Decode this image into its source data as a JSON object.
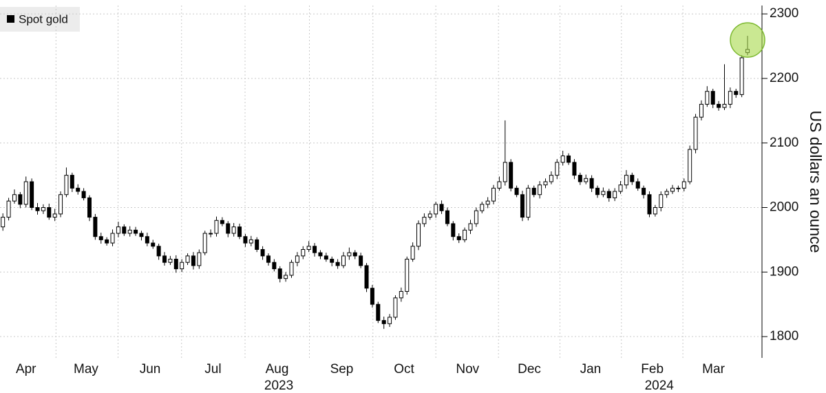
{
  "chart_data": {
    "type": "candlestick",
    "legend": "Spot gold",
    "legend_color": "#000000",
    "ylabel": "US dollars an ounce",
    "ylim": [
      1767,
      2313
    ],
    "yticks": [
      1800,
      1900,
      2000,
      2100,
      2200,
      2300
    ],
    "xlim": [
      -0.5,
      131.5
    ],
    "xticks": [
      {
        "value": 4.0,
        "label": "Apr"
      },
      {
        "value": 14.4,
        "label": "May"
      },
      {
        "value": 25.5,
        "label": "Jun"
      },
      {
        "value": 36.4,
        "label": "Jul"
      },
      {
        "value": 47.5,
        "label": "Aug"
      },
      {
        "value": 58.7,
        "label": "Sep"
      },
      {
        "value": 69.5,
        "label": "Oct"
      },
      {
        "value": 80.5,
        "label": "Nov"
      },
      {
        "value": 91.2,
        "label": "Dec"
      },
      {
        "value": 101.8,
        "label": "Jan"
      },
      {
        "value": 112.5,
        "label": "Feb"
      },
      {
        "value": 123.1,
        "label": "Mar"
      }
    ],
    "year_ticks": [
      {
        "value": 47.8,
        "label": "2023"
      },
      {
        "value": 113.7,
        "label": "2024"
      }
    ],
    "grid": true,
    "up_color": "#ffffff",
    "down_color": "#000000",
    "highlight_color": "#a6d84a",
    "open": [
      1970,
      1985,
      2010,
      2020,
      2005,
      2040,
      2000,
      1995,
      2000,
      1985,
      1990,
      2020,
      2050,
      2030,
      2025,
      2015,
      1985,
      1955,
      1950,
      1945,
      1960,
      1970,
      1960,
      1965,
      1960,
      1955,
      1945,
      1940,
      1925,
      1915,
      1920,
      1905,
      1915,
      1925,
      1910,
      1930,
      1960,
      1960,
      1980,
      1975,
      1960,
      1970,
      1955,
      1945,
      1950,
      1935,
      1925,
      1915,
      1905,
      1890,
      1895,
      1915,
      1925,
      1935,
      1940,
      1930,
      1925,
      1920,
      1915,
      1910,
      1925,
      1930,
      1925,
      1910,
      1875,
      1850,
      1825,
      1820,
      1830,
      1860,
      1870,
      1920,
      1940,
      1975,
      1985,
      1990,
      2005,
      1995,
      1975,
      1955,
      1950,
      1965,
      1975,
      1995,
      2005,
      2010,
      2030,
      2040,
      2070,
      2030,
      2020,
      1985,
      2030,
      2020,
      2035,
      2040,
      2050,
      2070,
      2080,
      2070,
      2050,
      2040,
      2045,
      2030,
      2020,
      2025,
      2015,
      2025,
      2035,
      2050,
      2040,
      2030,
      2020,
      1990,
      2000,
      2020,
      2025,
      2030,
      2030,
      2040,
      2090,
      2140,
      2160,
      2180,
      2160,
      2155,
      2160,
      2180,
      2175,
      2240
    ],
    "high": [
      1991,
      2015,
      2028,
      2024,
      2048,
      2045,
      2007,
      2005,
      2006,
      1998,
      2025,
      2062,
      2054,
      2036,
      2030,
      2019,
      1990,
      1961,
      1954,
      1966,
      1978,
      1974,
      1971,
      1970,
      1964,
      1961,
      1950,
      1944,
      1931,
      1925,
      1926,
      1920,
      1929,
      1931,
      1935,
      1964,
      1966,
      1986,
      1985,
      1979,
      1976,
      1975,
      1959,
      1956,
      1954,
      1940,
      1929,
      1920,
      1909,
      1900,
      1919,
      1931,
      1940,
      1948,
      1945,
      1934,
      1930,
      1924,
      1920,
      1931,
      1938,
      1934,
      1930,
      1914,
      1880,
      1854,
      1831,
      1835,
      1864,
      1876,
      1924,
      1946,
      1980,
      1991,
      1995,
      2009,
      2011,
      2000,
      1979,
      1960,
      1969,
      1981,
      2000,
      2009,
      2016,
      2035,
      2048,
      2135,
      2075,
      2034,
      2026,
      2035,
      2034,
      2041,
      2045,
      2056,
      2075,
      2088,
      2084,
      2075,
      2054,
      2051,
      2050,
      2034,
      2031,
      2029,
      2030,
      2041,
      2058,
      2054,
      2045,
      2034,
      2025,
      2004,
      2025,
      2029,
      2035,
      2034,
      2045,
      2096,
      2145,
      2166,
      2188,
      2184,
      2165,
      2222,
      2186,
      2184,
      2236,
      2266
    ],
    "low": [
      1964,
      1980,
      2006,
      1999,
      2000,
      1996,
      1989,
      1990,
      1981,
      1979,
      1985,
      2016,
      2024,
      2020,
      2011,
      1979,
      1950,
      1944,
      1941,
      1940,
      1954,
      1956,
      1955,
      1956,
      1949,
      1940,
      1936,
      1919,
      1910,
      1911,
      1899,
      1900,
      1911,
      1904,
      1905,
      1926,
      1954,
      1955,
      1971,
      1954,
      1955,
      1951,
      1939,
      1940,
      1931,
      1919,
      1910,
      1901,
      1884,
      1885,
      1891,
      1909,
      1920,
      1931,
      1924,
      1920,
      1916,
      1909,
      1905,
      1906,
      1919,
      1920,
      1906,
      1869,
      1845,
      1821,
      1812,
      1815,
      1826,
      1854,
      1865,
      1916,
      1934,
      1970,
      1981,
      1984,
      1990,
      1971,
      1949,
      1945,
      1946,
      1959,
      1970,
      1991,
      1999,
      2005,
      2026,
      2034,
      2025,
      2016,
      1979,
      1980,
      2016,
      2014,
      2030,
      2036,
      2044,
      2065,
      2066,
      2044,
      2035,
      2036,
      2024,
      2015,
      2016,
      2009,
      2010,
      2021,
      2029,
      2035,
      2026,
      2014,
      1985,
      1986,
      1994,
      2015,
      2021,
      2024,
      2025,
      2036,
      2084,
      2135,
      2156,
      2154,
      2150,
      2151,
      2154,
      2170,
      2171,
      2236
    ],
    "close": [
      1985,
      2010,
      2020,
      2005,
      2040,
      2000,
      1995,
      2000,
      1985,
      1990,
      2020,
      2050,
      2030,
      2025,
      2015,
      1985,
      1955,
      1950,
      1945,
      1960,
      1970,
      1960,
      1965,
      1960,
      1955,
      1945,
      1940,
      1925,
      1915,
      1920,
      1905,
      1915,
      1925,
      1910,
      1930,
      1960,
      1960,
      1980,
      1975,
      1960,
      1970,
      1955,
      1945,
      1950,
      1935,
      1925,
      1915,
      1905,
      1890,
      1895,
      1915,
      1925,
      1935,
      1940,
      1930,
      1925,
      1920,
      1915,
      1910,
      1925,
      1930,
      1925,
      1910,
      1875,
      1850,
      1825,
      1820,
      1830,
      1860,
      1870,
      1920,
      1940,
      1975,
      1985,
      1990,
      2005,
      1995,
      1975,
      1955,
      1950,
      1965,
      1975,
      1995,
      2005,
      2010,
      2030,
      2040,
      2070,
      2030,
      2020,
      1985,
      2030,
      2020,
      2035,
      2040,
      2050,
      2070,
      2080,
      2070,
      2050,
      2040,
      2045,
      2030,
      2020,
      2025,
      2015,
      2025,
      2035,
      2050,
      2040,
      2030,
      2020,
      1990,
      2000,
      2020,
      2025,
      2030,
      2030,
      2040,
      2090,
      2140,
      2160,
      2180,
      2160,
      2155,
      2160,
      2180,
      2175,
      2232,
      2245
    ]
  }
}
